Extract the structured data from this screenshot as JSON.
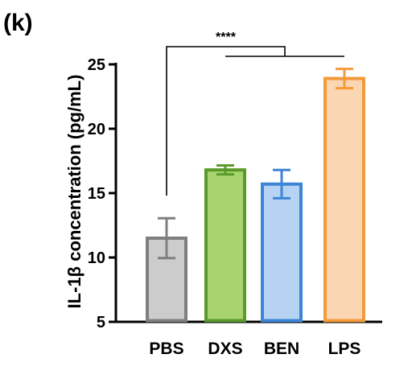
{
  "panel_label": "(k)",
  "chart_data": {
    "type": "bar",
    "title": "",
    "xlabel": "",
    "ylabel": "IL-1β concentration (pg/mL)",
    "ylim": [
      5,
      25
    ],
    "yticks": [
      "5",
      "10",
      "15",
      "20",
      "25"
    ],
    "grid": false,
    "categories": [
      "PBS",
      "DXS",
      "BEN",
      "LPS"
    ],
    "values": [
      11.5,
      16.8,
      15.7,
      23.9
    ],
    "errors": [
      1.55,
      0.35,
      1.1,
      0.75
    ],
    "colors": {
      "fills": [
        "#cccccc",
        "#a8d46f",
        "#b7d3f3",
        "#fbd6b3"
      ],
      "strokes": [
        "#7f7f7f",
        "#5a9a2a",
        "#3d85d6",
        "#f39a3b"
      ]
    },
    "significance": {
      "label": "****",
      "left_group": "PBS",
      "right_groups": [
        "DXS",
        "LPS"
      ]
    }
  }
}
